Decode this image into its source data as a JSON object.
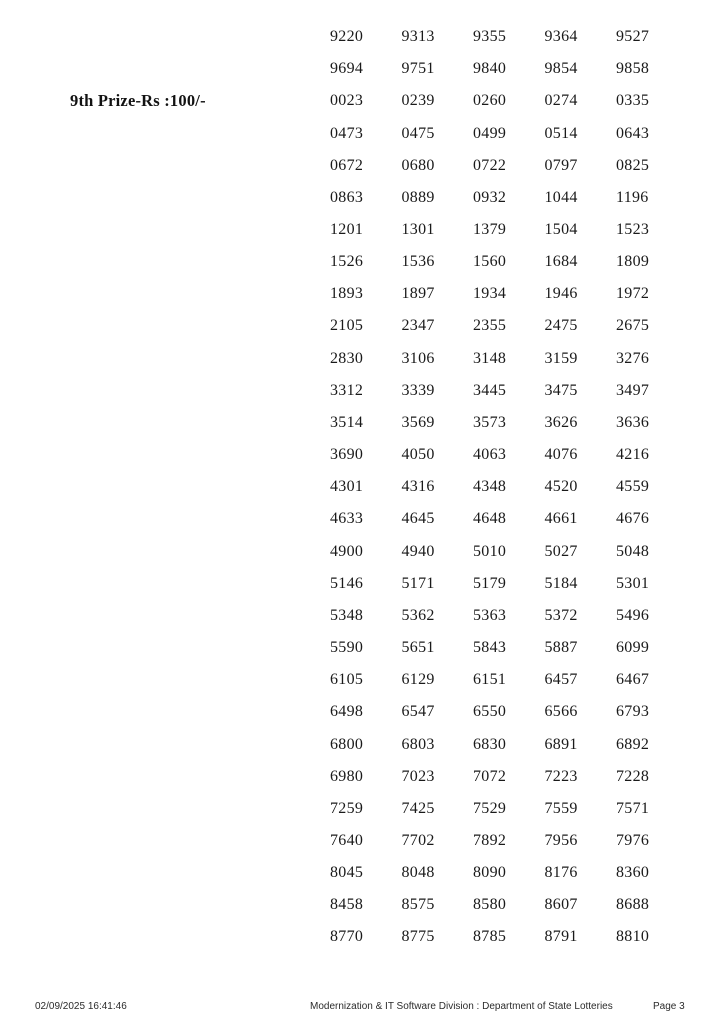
{
  "prize_section": {
    "label": "9th Prize-Rs :100/-"
  },
  "grid": {
    "rows": [
      [
        "9220",
        "9313",
        "9355",
        "9364",
        "9527"
      ],
      [
        "9694",
        "9751",
        "9840",
        "9854",
        "9858"
      ],
      [
        "0023",
        "0239",
        "0260",
        "0274",
        "0335"
      ],
      [
        "0473",
        "0475",
        "0499",
        "0514",
        "0643"
      ],
      [
        "0672",
        "0680",
        "0722",
        "0797",
        "0825"
      ],
      [
        "0863",
        "0889",
        "0932",
        "1044",
        "1196"
      ],
      [
        "1201",
        "1301",
        "1379",
        "1504",
        "1523"
      ],
      [
        "1526",
        "1536",
        "1560",
        "1684",
        "1809"
      ],
      [
        "1893",
        "1897",
        "1934",
        "1946",
        "1972"
      ],
      [
        "2105",
        "2347",
        "2355",
        "2475",
        "2675"
      ],
      [
        "2830",
        "3106",
        "3148",
        "3159",
        "3276"
      ],
      [
        "3312",
        "3339",
        "3445",
        "3475",
        "3497"
      ],
      [
        "3514",
        "3569",
        "3573",
        "3626",
        "3636"
      ],
      [
        "3690",
        "4050",
        "4063",
        "4076",
        "4216"
      ],
      [
        "4301",
        "4316",
        "4348",
        "4520",
        "4559"
      ],
      [
        "4633",
        "4645",
        "4648",
        "4661",
        "4676"
      ],
      [
        "4900",
        "4940",
        "5010",
        "5027",
        "5048"
      ],
      [
        "5146",
        "5171",
        "5179",
        "5184",
        "5301"
      ],
      [
        "5348",
        "5362",
        "5363",
        "5372",
        "5496"
      ],
      [
        "5590",
        "5651",
        "5843",
        "5887",
        "6099"
      ],
      [
        "6105",
        "6129",
        "6151",
        "6457",
        "6467"
      ],
      [
        "6498",
        "6547",
        "6550",
        "6566",
        "6793"
      ],
      [
        "6800",
        "6803",
        "6830",
        "6891",
        "6892"
      ],
      [
        "6980",
        "7023",
        "7072",
        "7223",
        "7228"
      ],
      [
        "7259",
        "7425",
        "7529",
        "7559",
        "7571"
      ],
      [
        "7640",
        "7702",
        "7892",
        "7956",
        "7976"
      ],
      [
        "8045",
        "8048",
        "8090",
        "8176",
        "8360"
      ],
      [
        "8458",
        "8575",
        "8580",
        "8607",
        "8688"
      ],
      [
        "8770",
        "8775",
        "8785",
        "8791",
        "8810"
      ]
    ]
  },
  "footer": {
    "timestamp": "02/09/2025 16:41:46",
    "division": "Modernization & IT Software Division : Department of State Lotteries",
    "page": "Page 3"
  }
}
